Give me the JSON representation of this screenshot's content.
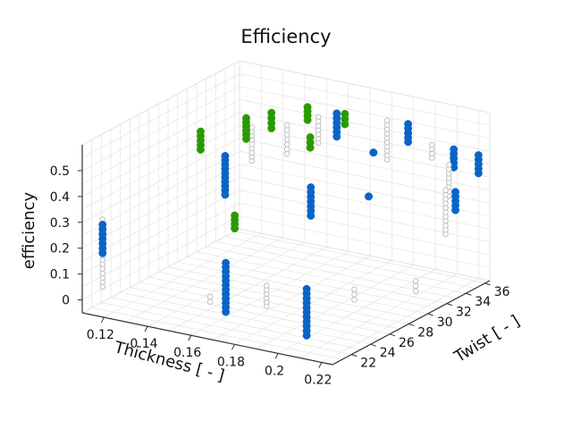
{
  "chart_data": {
    "type": "scatter",
    "projection": "3d",
    "title": "Efficiency",
    "xlabel": "Thickness [ - ]",
    "ylabel": "Twist [ - ]",
    "zlabel": "efficiency",
    "xlim": [
      0.11,
      0.225
    ],
    "ylim": [
      20,
      36.5
    ],
    "zlim": [
      -0.05,
      0.6
    ],
    "x_ticks": [
      "0.12",
      "0.14",
      "0.16",
      "0.18",
      "0.2",
      "0.22"
    ],
    "y_ticks": [
      "22",
      "24",
      "26",
      "28",
      "30",
      "32",
      "34",
      "36"
    ],
    "z_ticks": [
      "0",
      "0.1",
      "0.2",
      "0.3",
      "0.4",
      "0.5"
    ],
    "grid": true,
    "colors": {
      "grey_marker": "#c0c0c0",
      "blue_marker": "#0a64c8",
      "green_marker": "#2a9a00",
      "grid": "#e3e3e3",
      "axis": "#333333"
    },
    "series": [
      {
        "marker": "hollow circle",
        "color": "#c0c0c0",
        "columns": [
          {
            "x": 0.12,
            "y": 35.5,
            "z": [
              0.25,
              0.38
            ]
          },
          {
            "x": 0.115,
            "y": 21.0,
            "z": [
              0.04,
              0.3
            ]
          },
          {
            "x": 0.145,
            "y": 33.5,
            "z": [
              0.36,
              0.47
            ]
          },
          {
            "x": 0.155,
            "y": 34.5,
            "z": [
              0.4,
              0.5
            ]
          },
          {
            "x": 0.205,
            "y": 35.0,
            "z": [
              0.42,
              0.47
            ]
          },
          {
            "x": 0.18,
            "y": 36.0,
            "z": [
              0.35,
              0.5
            ]
          },
          {
            "x": 0.215,
            "y": 34.5,
            "z": [
              0.3,
              0.42
            ]
          },
          {
            "x": 0.22,
            "y": 33.0,
            "z": [
              0.19,
              0.36
            ]
          },
          {
            "x": 0.16,
            "y": 22.0,
            "z": [
              0.04,
              0.06
            ]
          },
          {
            "x": 0.175,
            "y": 24.5,
            "z": [
              0.0,
              0.08
            ]
          },
          {
            "x": 0.2,
            "y": 28.0,
            "z": [
              0.0,
              0.04
            ]
          },
          {
            "x": 0.215,
            "y": 31.0,
            "z": [
              0.0,
              0.04
            ]
          }
        ]
      },
      {
        "marker": "filled circle",
        "color": "#0a64c8",
        "columns": [
          {
            "x": 0.115,
            "y": 21.0,
            "z": [
              0.17,
              0.28
            ]
          },
          {
            "x": 0.165,
            "y": 22.5,
            "z": [
              0.0,
              0.19
            ]
          },
          {
            "x": 0.2,
            "y": 23.0,
            "z": [
              -0.04,
              0.14
            ]
          },
          {
            "x": 0.145,
            "y": 27.0,
            "z": [
              0.33,
              0.48
            ]
          },
          {
            "x": 0.18,
            "y": 28.0,
            "z": [
              0.29,
              0.4
            ]
          },
          {
            "x": 0.2,
            "y": 30.0,
            "z": [
              0.53,
              0.53
            ]
          },
          {
            "x": 0.205,
            "y": 32.5,
            "z": [
              0.53,
              0.6
            ]
          },
          {
            "x": 0.215,
            "y": 35.0,
            "z": [
              0.4,
              0.47
            ]
          },
          {
            "x": 0.218,
            "y": 34.5,
            "z": [
              0.25,
              0.32
            ]
          },
          {
            "x": 0.222,
            "y": 36.0,
            "z": [
              0.37,
              0.44
            ]
          },
          {
            "x": 0.17,
            "y": 33.0,
            "z": [
              0.48,
              0.57
            ]
          },
          {
            "x": 0.2,
            "y": 29.5,
            "z": [
              0.37,
              0.37
            ]
          }
        ]
      },
      {
        "marker": "filled circle",
        "color": "#2a9a00",
        "columns": [
          {
            "x": 0.125,
            "y": 29.0,
            "z": [
              0.43,
              0.5
            ]
          },
          {
            "x": 0.135,
            "y": 31.5,
            "z": [
              0.44,
              0.52
            ]
          },
          {
            "x": 0.14,
            "y": 33.0,
            "z": [
              0.46,
              0.52
            ]
          },
          {
            "x": 0.15,
            "y": 34.5,
            "z": [
              0.48,
              0.53
            ]
          },
          {
            "x": 0.145,
            "y": 28.0,
            "z": [
              0.18,
              0.23
            ]
          },
          {
            "x": 0.16,
            "y": 32.5,
            "z": [
              0.43,
              0.47
            ]
          },
          {
            "x": 0.165,
            "y": 35.0,
            "z": [
              0.48,
              0.52
            ]
          }
        ]
      }
    ]
  }
}
